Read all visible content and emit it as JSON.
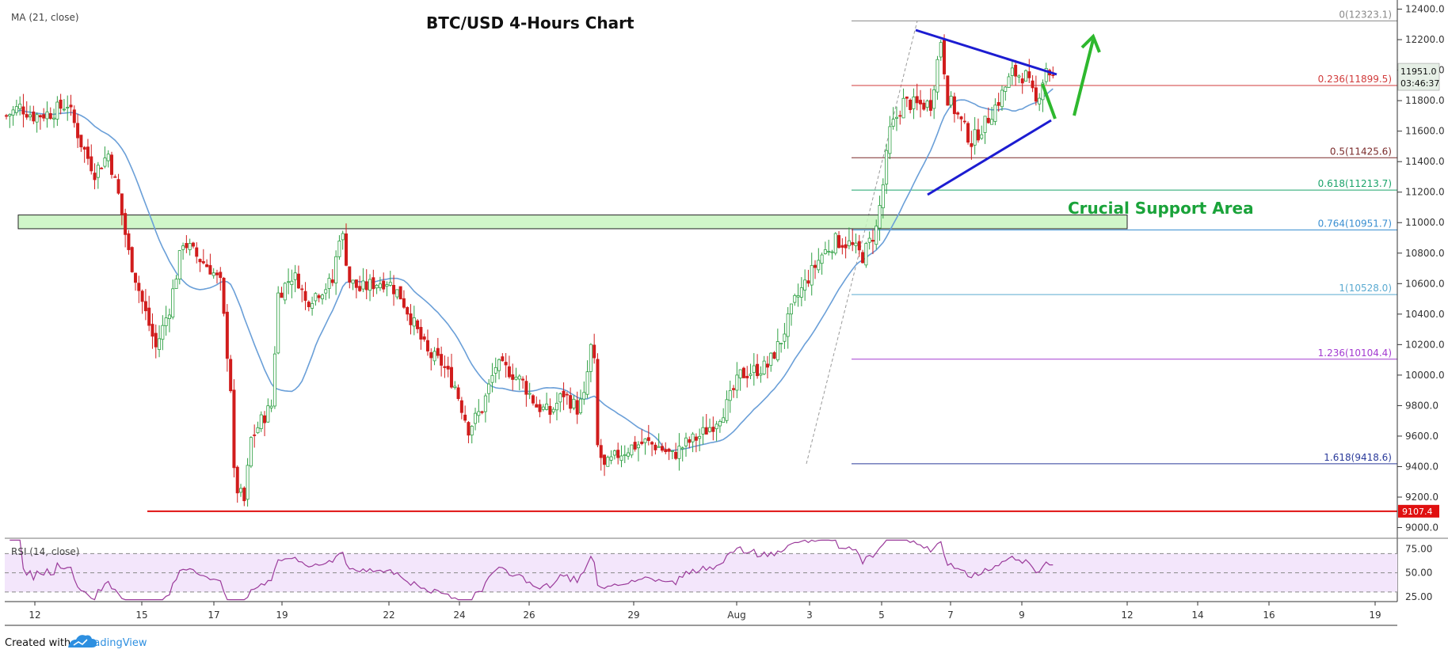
{
  "chart_data": {
    "type": "candlestick",
    "title": "BTC/USD 4-Hours Chart",
    "indicator_ma_label": "MA (21, close)",
    "indicator_rsi_label": "RSI (14, close)",
    "x_tick_labels": [
      "12",
      "15",
      "17",
      "19",
      "22",
      "24",
      "26",
      "29",
      "Aug",
      "3",
      "5",
      "7",
      "9",
      "12",
      "14",
      "16",
      "19"
    ],
    "y_tick_labels": [
      "9000.0",
      "9200.0",
      "9400.0",
      "9600.0",
      "9800.0",
      "10000.0",
      "10200.0",
      "10400.0",
      "10600.0",
      "10800.0",
      "11000.0",
      "11200.0",
      "11400.0",
      "11600.0",
      "11800.0",
      "12000.0",
      "12200.0",
      "12400.0"
    ],
    "ylim": [
      8930,
      12460
    ],
    "rsi_tick_labels": [
      "75.00",
      "50.00",
      "25.00"
    ],
    "rsi_ylim": [
      20,
      86
    ],
    "current_price_label": "11951.0",
    "countdown_label": "03:46:37",
    "current_price": 11951.0,
    "support_line_label": "9107.4",
    "support_line_value": 9107.4,
    "support_zone": {
      "label": "Crucial Support Area",
      "low": 10960,
      "high": 11050
    },
    "fib_levels": [
      {
        "label": "0(12323.1)",
        "value": 12323.1,
        "color": "#888888"
      },
      {
        "label": "0.236(11899.5)",
        "value": 11899.5,
        "color": "#d13b3b"
      },
      {
        "label": "0.5(11425.6)",
        "value": 11425.6,
        "color": "#7a2a2a"
      },
      {
        "label": "0.618(11213.7)",
        "value": 11213.7,
        "color": "#1aa36a"
      },
      {
        "label": "0.764(10951.7)",
        "value": 10951.7,
        "color": "#3a8fd1"
      },
      {
        "label": "1(10528.0)",
        "value": 10528.0,
        "color": "#5aaad1"
      },
      {
        "label": "1.236(10104.4)",
        "value": 10104.4,
        "color": "#a33ad1"
      },
      {
        "label": "1.618(9418.6)",
        "value": 9418.6,
        "color": "#2a3a9a"
      }
    ],
    "colors": {
      "up": "#2ea043",
      "up_fill": "#ffffff",
      "down": "#d11c1c",
      "ma": "#6a9fd8",
      "rsi": "#9b3b9b",
      "rsi_band": "#f3e6fb"
    },
    "anchors": [
      [
        0,
        11700
      ],
      [
        4,
        11760
      ],
      [
        8,
        11700
      ],
      [
        13,
        11720
      ],
      [
        18,
        11780
      ],
      [
        22,
        11520
      ],
      [
        26,
        11330
      ],
      [
        30,
        11450
      ],
      [
        33,
        11180
      ],
      [
        36,
        10800
      ],
      [
        40,
        10480
      ],
      [
        44,
        10180
      ],
      [
        48,
        10440
      ],
      [
        52,
        10880
      ],
      [
        56,
        10780
      ],
      [
        60,
        10700
      ],
      [
        63,
        10600
      ],
      [
        66,
        9920
      ],
      [
        67,
        9350
      ],
      [
        68,
        9250
      ],
      [
        70,
        9170
      ],
      [
        72,
        9580
      ],
      [
        75,
        9700
      ],
      [
        78,
        9800
      ],
      [
        80,
        10530
      ],
      [
        84,
        10650
      ],
      [
        86,
        10620
      ],
      [
        88,
        10480
      ],
      [
        92,
        10550
      ],
      [
        96,
        10610
      ],
      [
        98,
        10920
      ],
      [
        99,
        10900
      ],
      [
        101,
        10620
      ],
      [
        104,
        10560
      ],
      [
        108,
        10600
      ],
      [
        112,
        10620
      ],
      [
        116,
        10520
      ],
      [
        120,
        10330
      ],
      [
        124,
        10140
      ],
      [
        128,
        10080
      ],
      [
        132,
        9930
      ],
      [
        136,
        9650
      ],
      [
        140,
        9780
      ],
      [
        144,
        10060
      ],
      [
        148,
        10030
      ],
      [
        152,
        9950
      ],
      [
        156,
        9800
      ],
      [
        160,
        9750
      ],
      [
        164,
        9880
      ],
      [
        168,
        9780
      ],
      [
        170,
        9850
      ],
      [
        172,
        10180
      ],
      [
        173,
        10070
      ],
      [
        174,
        9530
      ],
      [
        176,
        9390
      ],
      [
        180,
        9480
      ],
      [
        184,
        9530
      ],
      [
        188,
        9560
      ],
      [
        192,
        9530
      ],
      [
        196,
        9470
      ],
      [
        200,
        9550
      ],
      [
        204,
        9600
      ],
      [
        208,
        9680
      ],
      [
        212,
        9800
      ],
      [
        216,
        10000
      ],
      [
        220,
        10030
      ],
      [
        224,
        10060
      ],
      [
        228,
        10230
      ],
      [
        232,
        10480
      ],
      [
        236,
        10640
      ],
      [
        240,
        10790
      ],
      [
        244,
        10880
      ],
      [
        248,
        10860
      ],
      [
        252,
        10780
      ],
      [
        256,
        10960
      ],
      [
        258,
        11250
      ],
      [
        260,
        11600
      ],
      [
        264,
        11790
      ],
      [
        268,
        11770
      ],
      [
        272,
        11780
      ],
      [
        275,
        12200
      ],
      [
        277,
        11820
      ],
      [
        280,
        11700
      ],
      [
        284,
        11530
      ],
      [
        288,
        11650
      ],
      [
        292,
        11800
      ],
      [
        296,
        11980
      ],
      [
        300,
        11960
      ],
      [
        303,
        11780
      ],
      [
        306,
        12020
      ],
      [
        308,
        11951
      ]
    ]
  }
}
